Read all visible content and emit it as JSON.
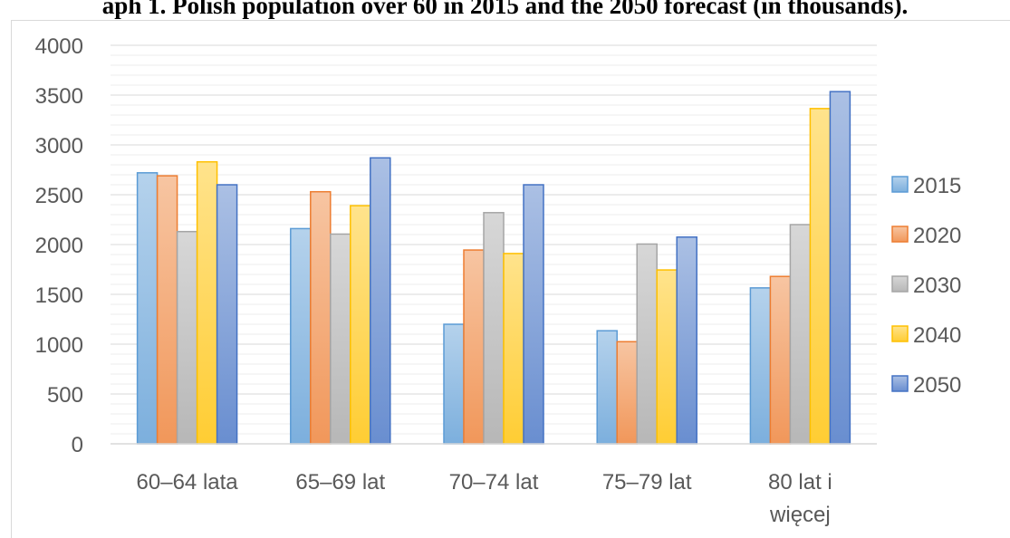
{
  "chart_data": {
    "type": "bar",
    "title": "aph 1. Polish population over 60 in 2015 and the 2050 forecast (in thousands).",
    "categories": [
      [
        "60–64 lata"
      ],
      [
        "65–69 lat"
      ],
      [
        "70–74 lat"
      ],
      [
        "75–79 lat"
      ],
      [
        "80 lat i",
        "więcej"
      ]
    ],
    "series": [
      {
        "name": "2015",
        "values": [
          2720,
          2160,
          1200,
          1135,
          1565
        ],
        "color": "#5b9bd5"
      },
      {
        "name": "2020",
        "values": [
          2690,
          2530,
          1945,
          1025,
          1680
        ],
        "color": "#ed7d31"
      },
      {
        "name": "2030",
        "values": [
          2130,
          2105,
          2320,
          2005,
          2200
        ],
        "color": "#a5a5a5"
      },
      {
        "name": "2040",
        "values": [
          2830,
          2390,
          1910,
          1745,
          3365
        ],
        "color": "#ffc000"
      },
      {
        "name": "2050",
        "values": [
          2600,
          2870,
          2600,
          2075,
          3535
        ],
        "color": "#4472c4"
      }
    ],
    "ylim": [
      0,
      4000
    ],
    "yticks": [
      0,
      500,
      1000,
      1500,
      2000,
      2500,
      3000,
      3500,
      4000
    ],
    "grid": true,
    "legend": "right"
  }
}
